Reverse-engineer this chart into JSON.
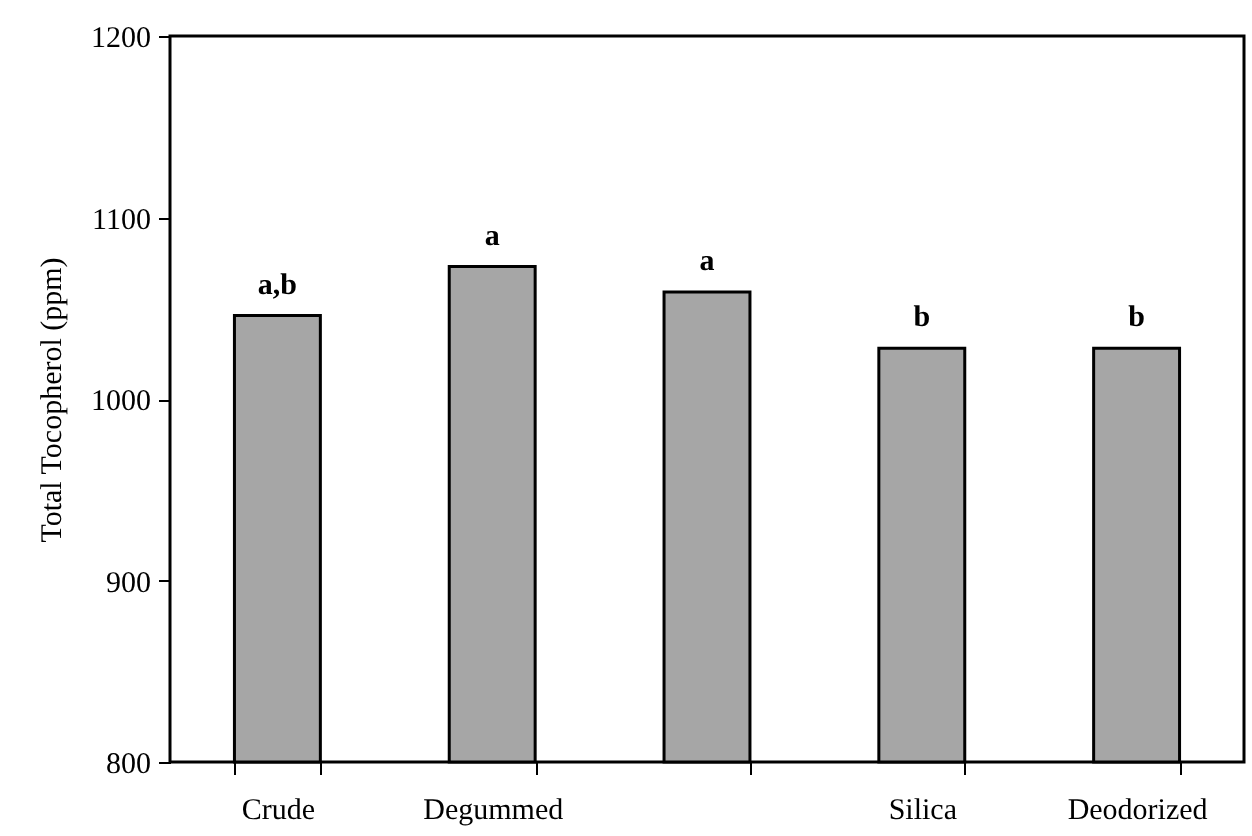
{
  "chart_data": {
    "type": "bar",
    "ylabel": "Total Tocopherol (ppm)",
    "categories": [
      "Crude",
      "Degummed",
      null,
      "Silica",
      "Deodorized"
    ],
    "values": [
      1046,
      1073,
      1059,
      1028,
      1028
    ],
    "value_labels": [
      "a,b",
      "a",
      "a",
      "b",
      "b"
    ],
    "color": "#a6a6a6",
    "ylim": [
      800,
      1200
    ],
    "yticks": [
      800,
      900,
      1000,
      1100,
      1200
    ],
    "grid": false
  }
}
